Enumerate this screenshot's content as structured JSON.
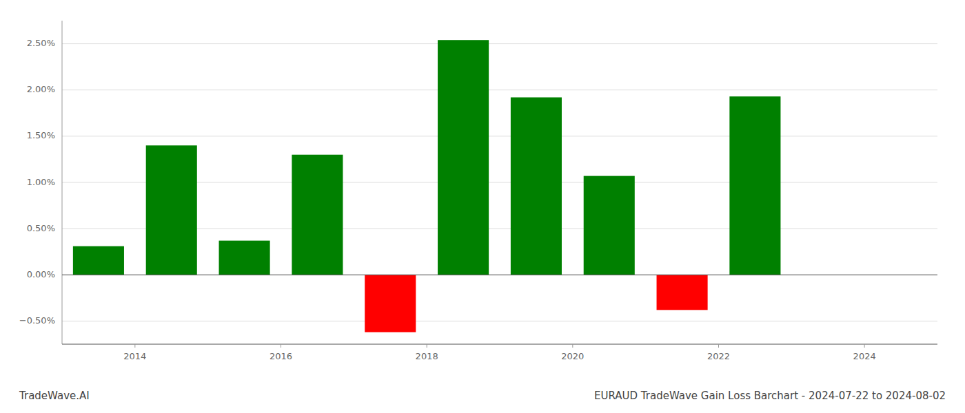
{
  "chart_data": {
    "type": "bar",
    "title": "EURAUD TradeWave Gain Loss Barchart - 2024-07-22 to 2024-08-02",
    "annotations": [
      "TradeWave.AI"
    ],
    "x": [
      2013.5,
      2014.5,
      2015.5,
      2016.5,
      2017.5,
      2018.5,
      2019.5,
      2020.5,
      2021.5,
      2022.5,
      2023.5
    ],
    "values": [
      0.31,
      1.4,
      0.37,
      1.3,
      -0.62,
      2.54,
      1.92,
      1.07,
      -0.38,
      1.93,
      0.0
    ],
    "colors": [
      "#008000",
      "#008000",
      "#008000",
      "#008000",
      "#ff0000",
      "#008000",
      "#008000",
      "#008000",
      "#ff0000",
      "#008000",
      "#008000"
    ],
    "ylim": [
      -0.75,
      2.75
    ],
    "yticks": [
      {
        "value": -0.5,
        "label": "−0.50%"
      },
      {
        "value": 0.0,
        "label": "0.00%"
      },
      {
        "value": 0.5,
        "label": "0.50%"
      },
      {
        "value": 1.0,
        "label": "1.00%"
      },
      {
        "value": 1.5,
        "label": "1.50%"
      },
      {
        "value": 2.0,
        "label": "2.00%"
      },
      {
        "value": 2.5,
        "label": "2.50%"
      }
    ],
    "xlim": [
      2013.0,
      2025.0
    ],
    "xticks": [
      2014,
      2016,
      2018,
      2020,
      2022,
      2024
    ],
    "grid": true
  }
}
